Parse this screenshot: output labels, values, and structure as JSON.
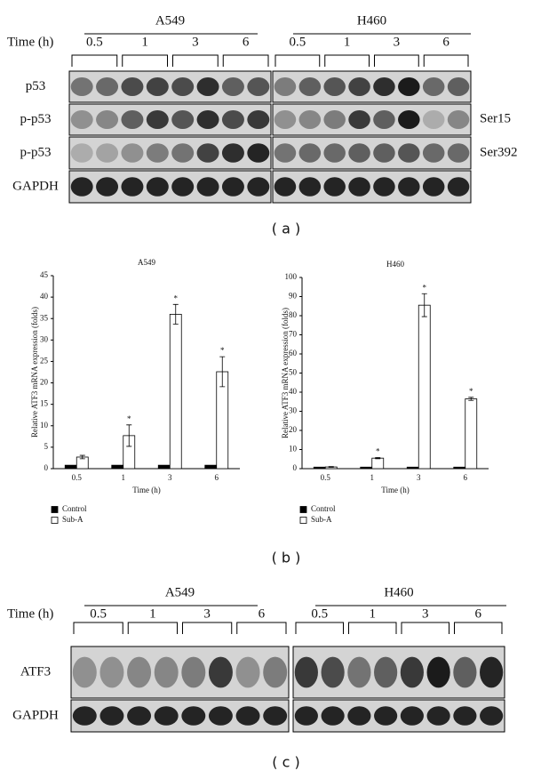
{
  "panel_a": {
    "cell_lines": [
      "A549",
      "H460"
    ],
    "time_label": "Time (h)",
    "times": [
      "0.5",
      "1",
      "3",
      "6"
    ],
    "rows": [
      "p53",
      "p-p53",
      "p-p53",
      "GAPDH"
    ],
    "sites": [
      "Ser15",
      "Ser392"
    ],
    "caption": "( a )"
  },
  "chart_data": [
    {
      "type": "bar",
      "title": "A549",
      "x_label": "Time (h)",
      "y_label": "Relative ATF3 mRNA expression (folds)",
      "categories": [
        "0.5",
        "1",
        "3",
        "6"
      ],
      "series": [
        {
          "name": "Control",
          "color": "#000000",
          "values": [
            0.8,
            0.8,
            0.8,
            0.8
          ]
        },
        {
          "name": "Sub-A",
          "color": "#ffffff",
          "values": [
            2.7,
            7.7,
            36,
            22.6
          ],
          "errors": [
            0.4,
            2.5,
            2.3,
            3.5
          ]
        }
      ],
      "significance": [
        null,
        "*",
        "*",
        "*"
      ],
      "ylim": [
        0,
        45
      ],
      "yticks": [
        0,
        5,
        10,
        15,
        20,
        25,
        30,
        35,
        40,
        45
      ],
      "legend": "bottom-left"
    },
    {
      "type": "bar",
      "title": "H460",
      "x_label": "Time (h)",
      "y_label": "Relative ATF3 mRNA expression (folds)",
      "categories": [
        "0.5",
        "1",
        "3",
        "6"
      ],
      "series": [
        {
          "name": "Control",
          "color": "#000000",
          "values": [
            0.8,
            0.8,
            0.8,
            0.8
          ]
        },
        {
          "name": "Sub-A",
          "color": "#ffffff",
          "values": [
            0.9,
            5.5,
            85.5,
            36.5
          ],
          "errors": [
            0.2,
            0.3,
            6,
            0.8
          ]
        }
      ],
      "significance": [
        null,
        "*",
        "*",
        "*"
      ],
      "ylim": [
        0,
        100
      ],
      "yticks": [
        0,
        10,
        20,
        30,
        40,
        50,
        60,
        70,
        80,
        90,
        100
      ],
      "legend": "bottom-left"
    }
  ],
  "panel_b_caption": "( b )",
  "panel_c": {
    "cell_lines": [
      "A549",
      "H460"
    ],
    "time_label": "Time (h)",
    "times": [
      "0.5",
      "1",
      "3",
      "6"
    ],
    "rows": [
      "ATF3",
      "GAPDH"
    ],
    "caption": "( c )"
  }
}
